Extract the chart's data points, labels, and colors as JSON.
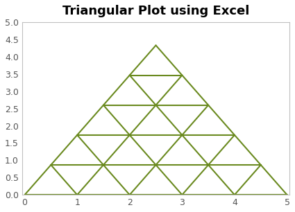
{
  "title": "Triangular Plot using Excel",
  "title_fontsize": 13,
  "title_fontweight": "bold",
  "line_color": "#6a8a1f",
  "line_width": 1.5,
  "xlim": [
    -0.05,
    5.05
  ],
  "ylim": [
    0.0,
    5.0
  ],
  "xticks": [
    0.0,
    1.0,
    2.0,
    3.0,
    4.0,
    5.0
  ],
  "yticks": [
    0.0,
    0.5,
    1.0,
    1.5,
    2.0,
    2.5,
    3.0,
    3.5,
    4.0,
    4.5,
    5.0
  ],
  "n_divisions": 5,
  "bg_color": "#ffffff",
  "axes_bg_color": "#ffffff",
  "tick_labelsize": 9,
  "spine_color": "#c0c0c0",
  "tick_color": "#555555"
}
